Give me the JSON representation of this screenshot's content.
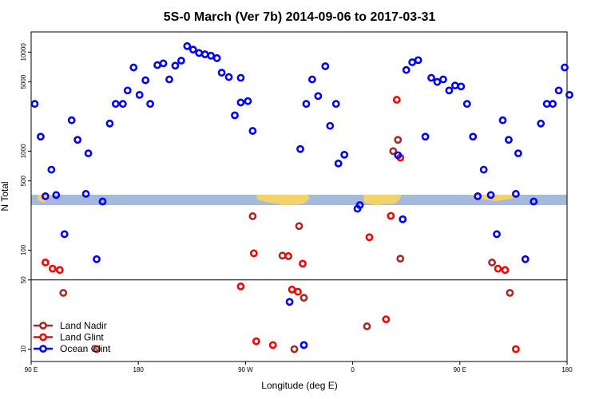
{
  "chart_data": {
    "type": "scatter",
    "title": "5S-0 March (Ver 7b)   2014-09-06 to 2017-03-31",
    "xlabel": "Longitude (deg E)",
    "ylabel": "N Total",
    "x_axis": {
      "range": [
        90,
        540
      ],
      "ticks": [
        90,
        180,
        270,
        360,
        450,
        540
      ],
      "tick_labels": [
        "90 E",
        "180",
        "90 W",
        "0",
        "90 E",
        "180"
      ]
    },
    "y_axis": {
      "scale": "log",
      "range": [
        7.5,
        16000
      ],
      "ticks": [
        10,
        50,
        100,
        500,
        1000,
        5000,
        10000
      ],
      "tick_labels": [
        "10",
        "50",
        "100",
        "500",
        "1000",
        "5000",
        "10000"
      ]
    },
    "reference_line_y": 50,
    "legend_position": "bottom-left",
    "map_strip": {
      "y_center": 300
    },
    "series": [
      {
        "name": "Land Nadir",
        "color": "#a52a2a",
        "points": [
          {
            "x": 117,
            "y": 37
          },
          {
            "x": 145,
            "y": 10
          },
          {
            "x": 276,
            "y": 220
          },
          {
            "x": 301,
            "y": 88
          },
          {
            "x": 311,
            "y": 10
          },
          {
            "x": 315,
            "y": 175
          },
          {
            "x": 319,
            "y": 33
          },
          {
            "x": 372,
            "y": 17
          },
          {
            "x": 394,
            "y": 1000
          },
          {
            "x": 398,
            "y": 1300
          },
          {
            "x": 400,
            "y": 82
          },
          {
            "x": 477,
            "y": 75
          },
          {
            "x": 492,
            "y": 37
          }
        ]
      },
      {
        "name": "Land Glint",
        "color": "#ff0000",
        "points": [
          {
            "x": 102,
            "y": 75
          },
          {
            "x": 108,
            "y": 65
          },
          {
            "x": 114,
            "y": 63
          },
          {
            "x": 266,
            "y": 43
          },
          {
            "x": 277,
            "y": 93
          },
          {
            "x": 279,
            "y": 12
          },
          {
            "x": 293,
            "y": 11
          },
          {
            "x": 306,
            "y": 87
          },
          {
            "x": 309,
            "y": 40
          },
          {
            "x": 314,
            "y": 38
          },
          {
            "x": 318,
            "y": 73
          },
          {
            "x": 374,
            "y": 135
          },
          {
            "x": 388,
            "y": 20
          },
          {
            "x": 392,
            "y": 222
          },
          {
            "x": 397,
            "y": 3300
          },
          {
            "x": 400,
            "y": 860
          },
          {
            "x": 482,
            "y": 65
          },
          {
            "x": 488,
            "y": 63
          },
          {
            "x": 497,
            "y": 10
          }
        ]
      },
      {
        "name": "Ocean Glint",
        "color": "#0000ff",
        "points": [
          {
            "x": 93,
            "y": 3000
          },
          {
            "x": 98,
            "y": 1400
          },
          {
            "x": 102,
            "y": 350
          },
          {
            "x": 107,
            "y": 650
          },
          {
            "x": 111,
            "y": 360
          },
          {
            "x": 118,
            "y": 145
          },
          {
            "x": 124,
            "y": 2050
          },
          {
            "x": 129,
            "y": 1300
          },
          {
            "x": 136,
            "y": 370
          },
          {
            "x": 138,
            "y": 950
          },
          {
            "x": 145,
            "y": 81
          },
          {
            "x": 150,
            "y": 310
          },
          {
            "x": 156,
            "y": 1900
          },
          {
            "x": 161,
            "y": 3000
          },
          {
            "x": 167,
            "y": 3000
          },
          {
            "x": 171,
            "y": 4100
          },
          {
            "x": 176,
            "y": 7000
          },
          {
            "x": 181,
            "y": 3700
          },
          {
            "x": 186,
            "y": 5200
          },
          {
            "x": 190,
            "y": 3000
          },
          {
            "x": 196,
            "y": 7400
          },
          {
            "x": 201,
            "y": 7700
          },
          {
            "x": 206,
            "y": 5300
          },
          {
            "x": 211,
            "y": 7300
          },
          {
            "x": 216,
            "y": 8200
          },
          {
            "x": 221,
            "y": 11500
          },
          {
            "x": 226,
            "y": 10600
          },
          {
            "x": 231,
            "y": 9800
          },
          {
            "x": 236,
            "y": 9500
          },
          {
            "x": 241,
            "y": 9200
          },
          {
            "x": 246,
            "y": 8700
          },
          {
            "x": 250,
            "y": 6200
          },
          {
            "x": 256,
            "y": 5600
          },
          {
            "x": 261,
            "y": 2300
          },
          {
            "x": 266,
            "y": 5500
          },
          {
            "x": 266,
            "y": 3100
          },
          {
            "x": 272,
            "y": 3200
          },
          {
            "x": 276,
            "y": 1600
          },
          {
            "x": 307,
            "y": 30
          },
          {
            "x": 316,
            "y": 1050
          },
          {
            "x": 319,
            "y": 11
          },
          {
            "x": 321,
            "y": 3000
          },
          {
            "x": 326,
            "y": 5300
          },
          {
            "x": 331,
            "y": 3600
          },
          {
            "x": 337,
            "y": 7200
          },
          {
            "x": 341,
            "y": 1800
          },
          {
            "x": 346,
            "y": 3000
          },
          {
            "x": 348,
            "y": 750
          },
          {
            "x": 353,
            "y": 920
          },
          {
            "x": 364,
            "y": 262
          },
          {
            "x": 366,
            "y": 285
          },
          {
            "x": 398,
            "y": 910
          },
          {
            "x": 402,
            "y": 205
          },
          {
            "x": 405,
            "y": 6600
          },
          {
            "x": 410,
            "y": 7900
          },
          {
            "x": 415,
            "y": 8300
          },
          {
            "x": 421,
            "y": 1400
          },
          {
            "x": 426,
            "y": 5500
          },
          {
            "x": 431,
            "y": 5000
          },
          {
            "x": 436,
            "y": 5300
          },
          {
            "x": 441,
            "y": 4100
          },
          {
            "x": 446,
            "y": 4600
          },
          {
            "x": 451,
            "y": 4500
          },
          {
            "x": 456,
            "y": 3000
          },
          {
            "x": 461,
            "y": 1400
          },
          {
            "x": 465,
            "y": 350
          },
          {
            "x": 470,
            "y": 650
          },
          {
            "x": 476,
            "y": 360
          },
          {
            "x": 481,
            "y": 145
          },
          {
            "x": 486,
            "y": 2050
          },
          {
            "x": 491,
            "y": 1300
          },
          {
            "x": 497,
            "y": 370
          },
          {
            "x": 499,
            "y": 950
          },
          {
            "x": 505,
            "y": 81
          },
          {
            "x": 512,
            "y": 310
          },
          {
            "x": 518,
            "y": 1900
          },
          {
            "x": 523,
            "y": 3000
          },
          {
            "x": 528,
            "y": 3000
          },
          {
            "x": 533,
            "y": 4100
          },
          {
            "x": 538,
            "y": 7000
          },
          {
            "x": 542,
            "y": 3700
          }
        ]
      }
    ]
  }
}
